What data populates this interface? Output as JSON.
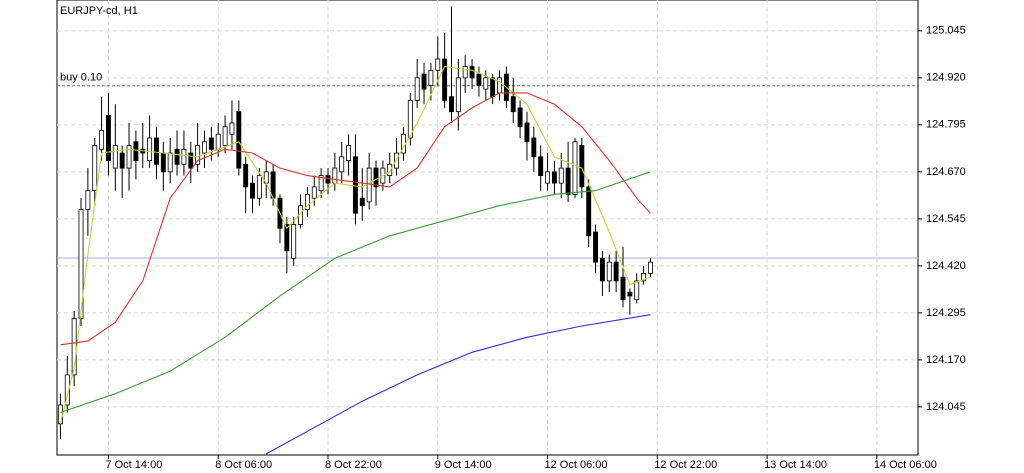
{
  "chart_data": {
    "type": "candlestick",
    "title": "EURJPY-cd, H1",
    "open": [
      124.0,
      124.05,
      124.13,
      124.28,
      124.57,
      124.62,
      124.73,
      124.82,
      124.68,
      124.72,
      124.68,
      124.75,
      124.73,
      124.7,
      124.76,
      124.72,
      124.67,
      124.73,
      124.69,
      124.72,
      124.69,
      124.72,
      124.76,
      124.73,
      124.74,
      124.77,
      124.83,
      124.69,
      124.64,
      124.6,
      124.64,
      124.67,
      124.6,
      124.53,
      124.44,
      124.53,
      124.57,
      124.6,
      124.62,
      124.66,
      124.64,
      124.67,
      124.7,
      124.71,
      124.6,
      124.59,
      124.68,
      124.64,
      124.66,
      124.68,
      124.72,
      124.76,
      124.86,
      124.93,
      124.9,
      124.94,
      124.97,
      124.87,
      124.83,
      124.92,
      124.95,
      124.93,
      124.89,
      124.92,
      124.88,
      124.93,
      124.87,
      124.84,
      124.8,
      124.76,
      124.71,
      124.64,
      124.67,
      124.64,
      124.68,
      124.61,
      124.74,
      124.63,
      124.51,
      124.44,
      124.38,
      124.43,
      124.39,
      124.35,
      124.33,
      124.38,
      124.4
    ],
    "high": [
      124.08,
      124.18,
      124.3,
      124.6,
      124.68,
      124.76,
      124.87,
      124.88,
      124.85,
      124.74,
      124.8,
      124.78,
      124.8,
      124.82,
      124.79,
      124.75,
      124.76,
      124.78,
      124.78,
      124.75,
      124.8,
      124.78,
      124.79,
      124.8,
      124.82,
      124.86,
      124.86,
      124.71,
      124.66,
      124.68,
      124.7,
      124.69,
      124.61,
      124.55,
      124.55,
      124.61,
      124.63,
      124.66,
      124.68,
      124.68,
      124.72,
      124.75,
      124.77,
      124.77,
      124.68,
      124.72,
      124.7,
      124.7,
      124.72,
      124.76,
      124.79,
      124.88,
      124.97,
      124.96,
      124.96,
      125.03,
      125.04,
      125.11,
      124.97,
      124.98,
      124.97,
      124.95,
      124.94,
      124.93,
      124.94,
      124.95,
      124.92,
      124.86,
      124.83,
      124.79,
      124.74,
      124.72,
      124.7,
      124.72,
      124.75,
      124.76,
      124.76,
      124.65,
      124.53,
      124.46,
      124.45,
      124.46,
      124.47,
      124.36,
      124.4,
      124.42,
      124.44
    ],
    "low": [
      123.96,
      124.03,
      124.1,
      124.26,
      124.5,
      124.58,
      124.7,
      124.66,
      124.62,
      124.6,
      124.62,
      124.65,
      124.68,
      124.68,
      124.65,
      124.62,
      124.64,
      124.66,
      124.66,
      124.64,
      124.67,
      124.68,
      124.7,
      124.71,
      124.72,
      124.73,
      124.66,
      124.56,
      124.56,
      124.58,
      124.6,
      124.58,
      124.48,
      124.4,
      124.42,
      124.52,
      124.55,
      124.58,
      124.6,
      124.61,
      124.62,
      124.64,
      124.66,
      124.53,
      124.54,
      124.57,
      124.58,
      124.62,
      124.64,
      124.66,
      124.7,
      124.74,
      124.84,
      124.85,
      124.86,
      124.9,
      124.84,
      124.8,
      124.78,
      124.88,
      124.89,
      124.87,
      124.86,
      124.85,
      124.86,
      124.84,
      124.8,
      124.76,
      124.7,
      124.67,
      124.62,
      124.62,
      124.61,
      124.6,
      124.59,
      124.6,
      124.6,
      124.47,
      124.4,
      124.34,
      124.35,
      124.35,
      124.31,
      124.29,
      124.32,
      124.37,
      124.39
    ],
    "close": [
      124.05,
      124.13,
      124.28,
      124.57,
      124.62,
      124.74,
      124.78,
      124.7,
      124.74,
      124.68,
      124.74,
      124.7,
      124.72,
      124.76,
      124.69,
      124.67,
      124.72,
      124.69,
      124.73,
      124.68,
      124.74,
      124.75,
      124.73,
      124.77,
      124.79,
      124.8,
      124.68,
      124.63,
      124.6,
      124.66,
      124.67,
      124.6,
      124.52,
      124.46,
      124.53,
      124.58,
      124.61,
      124.63,
      124.66,
      124.64,
      124.68,
      124.71,
      124.74,
      124.56,
      124.58,
      124.68,
      124.63,
      124.68,
      124.69,
      124.72,
      124.77,
      124.86,
      124.92,
      124.89,
      124.94,
      124.97,
      124.86,
      124.83,
      124.92,
      124.95,
      124.92,
      124.9,
      124.92,
      124.87,
      124.92,
      124.86,
      124.83,
      124.79,
      124.75,
      124.71,
      124.66,
      124.67,
      124.64,
      124.68,
      124.61,
      124.75,
      124.63,
      124.5,
      124.43,
      124.38,
      124.43,
      124.38,
      124.33,
      124.34,
      124.38,
      124.4,
      124.43
    ],
    "series": [
      {
        "color": "#c8d23c",
        "x": [
          0,
          2,
          4,
          6,
          10,
          15,
          20,
          26,
          30,
          33,
          36,
          40,
          44,
          48,
          52,
          56,
          60,
          64,
          68,
          72,
          76,
          80,
          83,
          86
        ],
        "values": [
          124.0,
          124.15,
          124.45,
          124.72,
          124.73,
          124.72,
          124.71,
          124.75,
          124.64,
          124.52,
          124.58,
          124.64,
          124.63,
          124.67,
          124.8,
          124.95,
          124.94,
          124.91,
          124.85,
          124.71,
          124.68,
          124.51,
          124.37,
          124.39
        ]
      },
      {
        "color": "#d8352a",
        "x": [
          0,
          4,
          8,
          12,
          16,
          20,
          24,
          28,
          32,
          36,
          40,
          44,
          48,
          52,
          56,
          60,
          64,
          68,
          72,
          76,
          80,
          84,
          86
        ],
        "values": [
          124.21,
          124.22,
          124.27,
          124.38,
          124.6,
          124.7,
          124.73,
          124.72,
          124.68,
          124.66,
          124.65,
          124.64,
          124.63,
          124.68,
          124.79,
          124.84,
          124.88,
          124.88,
          124.85,
          124.79,
          124.7,
          124.6,
          124.56
        ]
      },
      {
        "color": "#3e9a3a",
        "x": [
          0,
          8,
          16,
          24,
          32,
          40,
          48,
          56,
          64,
          72,
          78,
          86
        ],
        "values": [
          124.03,
          124.08,
          124.14,
          124.23,
          124.34,
          124.44,
          124.5,
          124.54,
          124.58,
          124.61,
          124.62,
          124.67
        ]
      },
      {
        "color": "#2b2fd6",
        "x": [
          30,
          36,
          44,
          52,
          60,
          68,
          76,
          86
        ],
        "values": [
          123.92,
          123.98,
          124.06,
          124.13,
          124.19,
          124.23,
          124.26,
          124.29
        ]
      }
    ],
    "levels": [
      {
        "label": "buy 0.10",
        "value": 124.899,
        "color": "#4a8a3a"
      },
      {
        "value": 124.441,
        "color": "#9fb2d8"
      }
    ],
    "xlim": [
      -0.5,
      125
    ],
    "ylim": [
      123.917,
      125.127
    ],
    "xticks": [
      {
        "value": 7,
        "label": "7 Oct 14:00"
      },
      {
        "value": 23,
        "label": "8 Oct 06:00"
      },
      {
        "value": 39,
        "label": "8 Oct 22:00"
      },
      {
        "value": 55,
        "label": "9 Oct 14:00"
      },
      {
        "value": 71,
        "label": "12 Oct 06:00"
      },
      {
        "value": 87,
        "label": "12 Oct 22:00"
      },
      {
        "value": 103,
        "label": "13 Oct 14:00"
      },
      {
        "value": 119,
        "label": "14 Oct 06:00"
      }
    ],
    "yticks": [
      125.045,
      124.92,
      124.795,
      124.67,
      124.545,
      124.42,
      124.295,
      124.17,
      124.045
    ],
    "ytick_labels": [
      "125.045",
      "124.920",
      "124.795",
      "124.670",
      "124.545",
      "124.420",
      "124.295",
      "124.170",
      "124.045"
    ],
    "grid": true
  }
}
